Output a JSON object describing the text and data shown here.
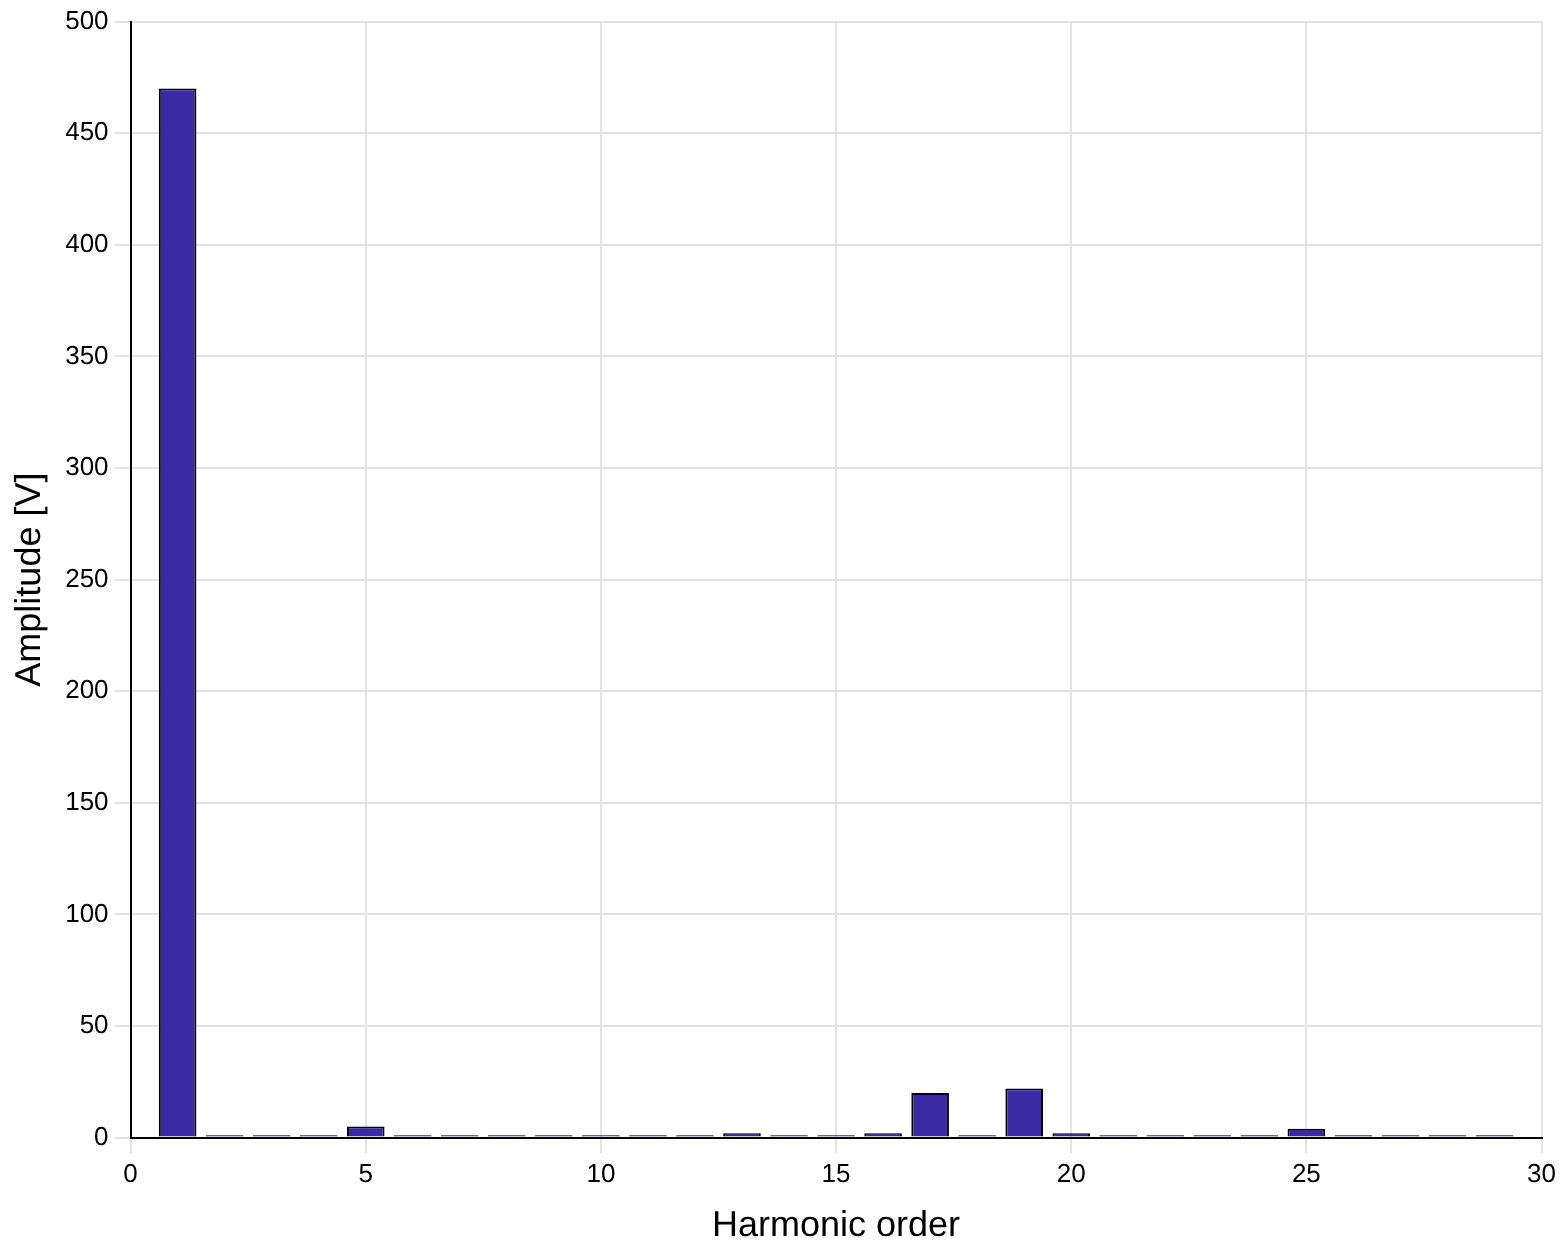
{
  "chart_data": {
    "type": "bar",
    "xlabel": "Harmonic order",
    "ylabel": "Amplitude [V]",
    "x": [
      1,
      2,
      3,
      4,
      5,
      6,
      7,
      8,
      9,
      10,
      11,
      12,
      13,
      14,
      15,
      16,
      17,
      18,
      19,
      20,
      21,
      22,
      23,
      24,
      25,
      26,
      27,
      28,
      29
    ],
    "values": [
      470,
      1,
      1,
      1,
      5,
      1,
      1,
      1,
      1,
      1,
      1,
      1,
      2,
      1,
      1,
      2,
      20,
      1,
      22,
      2,
      1,
      1,
      1,
      1,
      4,
      1,
      1,
      1,
      1
    ],
    "color": "#3b29a3",
    "xlim": [
      0,
      30
    ],
    "xticks": [
      0,
      5,
      10,
      15,
      20,
      25,
      30
    ],
    "ylim": [
      0,
      500
    ],
    "yticks": [
      0,
      50,
      100,
      150,
      200,
      250,
      300,
      350,
      400,
      450,
      500
    ],
    "grid": true
  }
}
